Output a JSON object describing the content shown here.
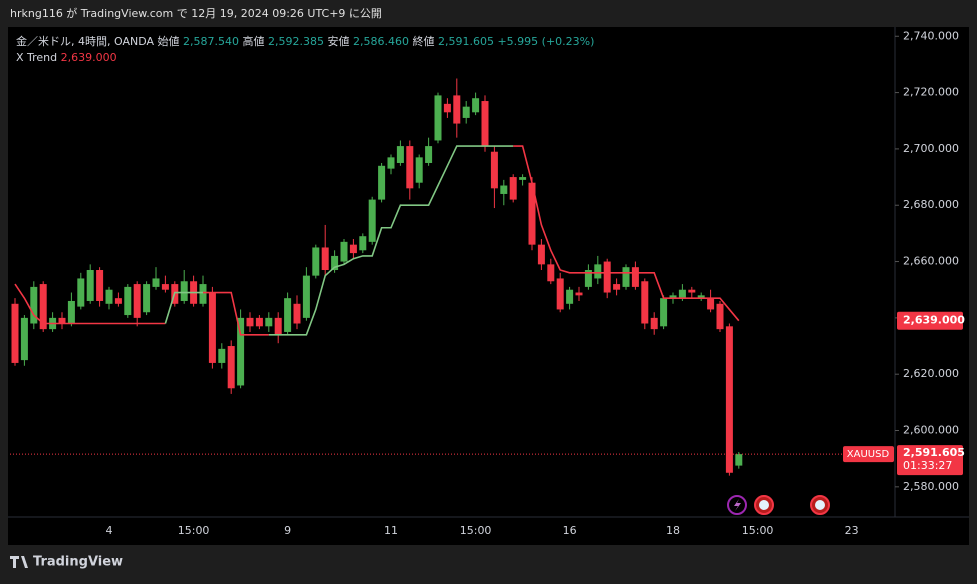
{
  "header": "hrkng116 が TradingView.com で 12月 19, 2024 09:26 UTC+9 に公開",
  "footer": "TradingView",
  "chart_data": {
    "type": "candlestick",
    "legend": {
      "symbol": "金／米ドル, 4時間, OANDA",
      "open_label": "始値",
      "open": "2,587.540",
      "high_label": "高値",
      "high": "2,592.385",
      "low_label": "安値",
      "low": "2,586.460",
      "close_label": "終値",
      "close": "2,591.605",
      "change": "+5.995 (+0.23%)"
    },
    "up_color": "#4caf50",
    "down_color": "#f23645",
    "categories": [
      null,
      null,
      null,
      null,
      null,
      null,
      null,
      null,
      null,
      null,
      "4",
      null,
      null,
      null,
      null,
      null,
      null,
      null,
      null,
      "15:00",
      null,
      null,
      null,
      null,
      null,
      null,
      null,
      null,
      null,
      "9",
      null,
      null,
      null,
      null,
      null,
      null,
      null,
      null,
      null,
      null,
      "11",
      null,
      null,
      null,
      null,
      null,
      null,
      null,
      null,
      "15:00",
      null,
      null,
      null,
      null,
      null,
      null,
      null,
      null,
      null,
      "16",
      null,
      null,
      null,
      null,
      null,
      null,
      null,
      null,
      null,
      null,
      "18",
      null,
      null,
      null,
      null,
      null,
      null,
      null,
      null,
      "15:00",
      null,
      null,
      null,
      null,
      null,
      null,
      null,
      null,
      null,
      "23",
      null
    ],
    "open": [
      2645,
      2625,
      2638,
      2652,
      2636,
      2640,
      2638,
      2644,
      2646,
      2657,
      2645,
      2647,
      2641,
      2652,
      2642,
      2651,
      2652,
      2652,
      2646,
      2653,
      2645,
      2649,
      2624,
      2630,
      2616,
      2640,
      2640,
      2637,
      2640,
      2635,
      2645,
      2640,
      2655,
      2665,
      2657,
      2660,
      2666,
      2664,
      2667,
      2682,
      2693,
      2695,
      2701,
      2688,
      2695,
      2703,
      2716,
      2719,
      2711,
      2713,
      2717,
      2699,
      2684,
      2690,
      2689,
      2688,
      2666,
      2659,
      2654,
      2645,
      2649,
      2651,
      2654,
      2660,
      2652,
      2651,
      2658,
      2653,
      2640,
      2637,
      2647,
      2647,
      2650,
      2647,
      2647,
      2645,
      2637,
      2587.54,
      null,
      null,
      null,
      null,
      null,
      null,
      null,
      null,
      null,
      null,
      null,
      null,
      null
    ],
    "high": [
      2647,
      2641,
      2653,
      2653,
      2642,
      2642,
      2649,
      2656,
      2659,
      2658,
      2651,
      2649,
      2652,
      2653,
      2653,
      2658,
      2655,
      2653,
      2657,
      2655,
      2655,
      2651,
      2631,
      2632,
      2643,
      2642,
      2641,
      2642,
      2642,
      2649,
      2648,
      2658,
      2666,
      2673,
      2664,
      2668,
      2668,
      2670,
      2683,
      2695,
      2698,
      2703,
      2703,
      2698,
      2704,
      2720,
      2718,
      2725,
      2717,
      2720,
      2719,
      2701,
      2689,
      2691,
      2691,
      2690,
      2668,
      2661,
      2656,
      2651,
      2651,
      2659,
      2662,
      2661,
      2654,
      2659,
      2660,
      2654,
      2642,
      2648,
      2649,
      2652,
      2651,
      2649,
      2650,
      2646,
      2638,
      2592.385,
      null,
      null,
      null,
      null,
      null,
      null,
      null,
      null,
      null,
      null,
      null,
      null,
      null
    ],
    "low": [
      2623,
      2623,
      2636,
      2635,
      2635,
      2636,
      2637,
      2643,
      2645,
      2644,
      2643,
      2644,
      2640,
      2637,
      2641,
      2650,
      2649,
      2644,
      2645,
      2644,
      2644,
      2622,
      2622,
      2613,
      2615,
      2635,
      2636,
      2635,
      2631,
      2634,
      2636,
      2639,
      2654,
      2655,
      2656,
      2659,
      2661,
      2663,
      2666,
      2681,
      2691,
      2694,
      2682,
      2686,
      2694,
      2702,
      2711,
      2704,
      2709,
      2712,
      2699,
      2679,
      2680,
      2681,
      2687,
      2664,
      2657,
      2652,
      2642,
      2643,
      2646,
      2650,
      2652,
      2647,
      2648,
      2650,
      2650,
      2636,
      2634,
      2636,
      2645,
      2646,
      2647,
      2646,
      2642,
      2635,
      2584,
      2586.46,
      null,
      null,
      null,
      null,
      null,
      null,
      null,
      null,
      null,
      null,
      null,
      null,
      null
    ],
    "close": [
      2624,
      2640,
      2651,
      2636,
      2640,
      2638,
      2646,
      2654,
      2657,
      2646,
      2650,
      2645,
      2651,
      2640,
      2652,
      2654,
      2650,
      2645,
      2653,
      2645,
      2652,
      2624,
      2629,
      2615,
      2640,
      2637,
      2637,
      2640,
      2634,
      2647,
      2638,
      2655,
      2665,
      2657,
      2662,
      2667,
      2663,
      2669,
      2682,
      2694,
      2697,
      2701,
      2686,
      2697,
      2701,
      2719,
      2713,
      2709,
      2715,
      2718,
      2701,
      2686,
      2687,
      2682,
      2690,
      2666,
      2659,
      2653,
      2643,
      2650,
      2648,
      2657,
      2659,
      2649,
      2650,
      2658,
      2651,
      2638,
      2636,
      2647,
      2648,
      2650,
      2649,
      2648,
      2643,
      2636,
      2585,
      2591.605,
      null,
      null,
      null,
      null,
      null,
      null,
      null,
      null,
      null,
      null,
      null,
      null,
      null
    ],
    "indicator": {
      "name": "X Trend",
      "value_label": "2,639.000",
      "up_color": "#81c784",
      "down_color": "#f23645",
      "down": [
        2652,
        2647,
        2641,
        2638,
        2638,
        2638,
        2638,
        2638,
        2638,
        2638,
        2638,
        2638,
        2638,
        2638,
        2638,
        2638,
        2638,
        null,
        null,
        null,
        2649,
        2649,
        2649,
        2649,
        2634,
        2634,
        2634,
        2634,
        null,
        null,
        null,
        null,
        null,
        null,
        null,
        null,
        null,
        null,
        null,
        null,
        null,
        null,
        null,
        null,
        null,
        null,
        null,
        null,
        null,
        null,
        null,
        null,
        null,
        2701,
        2701,
        2688,
        2673,
        2664,
        2657,
        2656,
        2656,
        2656,
        2656,
        2656,
        2656,
        2656,
        2656,
        2656,
        2656,
        2647,
        2647,
        2647,
        2647,
        2647,
        2647,
        2647,
        2643,
        2639,
        null,
        null,
        null,
        null,
        null,
        null,
        null,
        null,
        null,
        null,
        null,
        null,
        null
      ],
      "up": [
        null,
        null,
        null,
        null,
        null,
        null,
        null,
        null,
        null,
        null,
        null,
        null,
        null,
        null,
        null,
        null,
        2638,
        2649,
        2649,
        2649,
        2649,
        null,
        null,
        null,
        null,
        null,
        null,
        2634,
        2634,
        2634,
        2634,
        2634,
        2643,
        2655,
        2658,
        2659,
        2661,
        2662,
        2662,
        2672,
        2672,
        2680,
        2680,
        2680,
        2680,
        2687,
        2694,
        2701,
        2701,
        2701,
        2701,
        2701,
        2701,
        2701,
        null,
        null,
        null,
        null,
        null,
        null,
        null,
        null,
        null,
        null,
        null,
        null,
        null,
        null,
        null,
        null,
        null,
        null,
        null,
        null,
        null,
        null,
        null,
        null,
        null,
        null,
        null,
        null,
        null,
        null,
        null,
        null,
        null,
        null,
        null,
        null,
        null
      ]
    },
    "symbol": "XAUUSD",
    "last_price_label": "2,591.605",
    "countdown": "01:33:27",
    "ylim": [
      2570,
      2744
    ],
    "yticks": [
      {
        "value": 2580,
        "label": "2,580.000"
      },
      {
        "value": 2600,
        "label": "2,600.000"
      },
      {
        "value": 2620,
        "label": "2,620.000"
      },
      {
        "value": 2640,
        "label": "2,640.000"
      },
      {
        "value": 2660,
        "label": "2,660.000"
      },
      {
        "value": 2680,
        "label": "2,680.000"
      },
      {
        "value": 2700,
        "label": "2,700.000"
      },
      {
        "value": 2720,
        "label": "2,720.000"
      },
      {
        "value": 2740,
        "label": "2,740.000"
      }
    ]
  }
}
